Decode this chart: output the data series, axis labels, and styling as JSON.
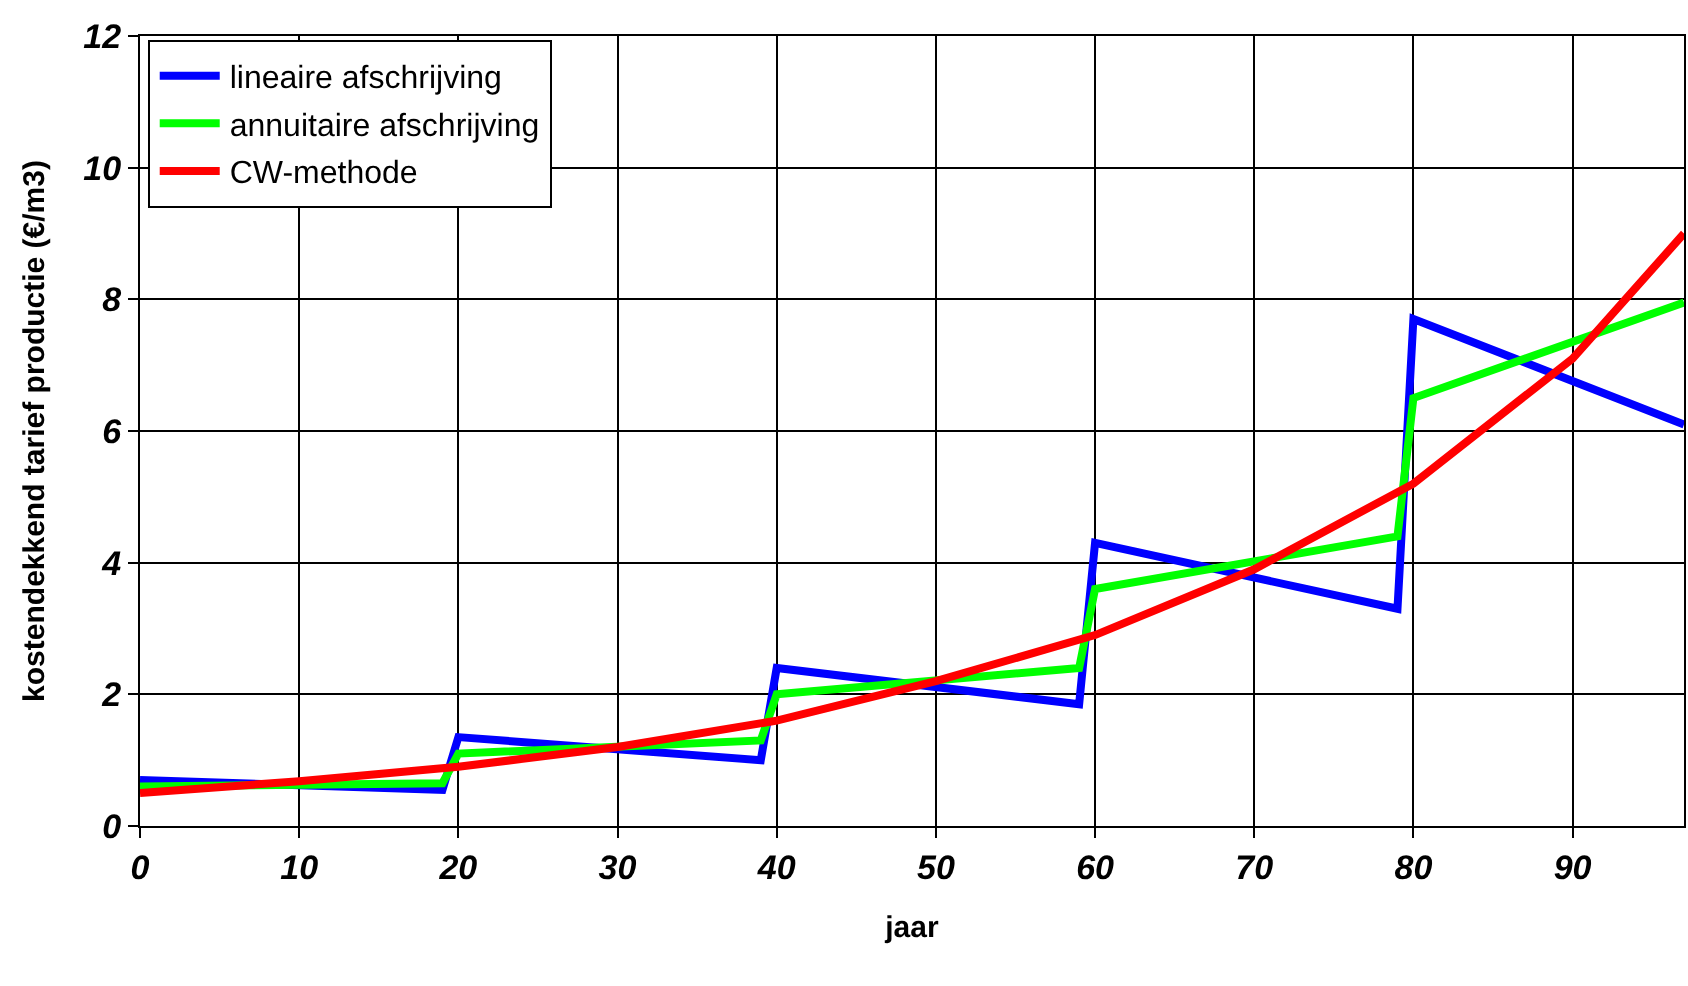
{
  "chart_data": {
    "type": "line",
    "xlabel": "jaar",
    "ylabel": "kostendekkend tarief productie (€/m3)",
    "xlim": [
      0,
      97
    ],
    "xticks": [
      0,
      10,
      20,
      30,
      40,
      50,
      60,
      70,
      80,
      90
    ],
    "ylim": [
      0,
      12
    ],
    "yticks": [
      0,
      2,
      4,
      6,
      8,
      10,
      12
    ],
    "grid": true,
    "legend": "top left",
    "marker": "none",
    "line_style": "solid",
    "series": [
      {
        "name": "lineaire afschrijving",
        "color": "#0000ff",
        "x": [
          0,
          19,
          20,
          39,
          40,
          59,
          60,
          79,
          80,
          97
        ],
        "values": [
          0.7,
          0.55,
          1.35,
          1.0,
          2.4,
          1.85,
          4.3,
          3.3,
          7.7,
          6.1
        ]
      },
      {
        "name": "annuitaire afschrijving",
        "color": "#00ff00",
        "x": [
          0,
          19,
          20,
          39,
          40,
          59,
          60,
          79,
          80,
          97
        ],
        "values": [
          0.6,
          0.65,
          1.1,
          1.3,
          2.0,
          2.4,
          3.6,
          4.4,
          6.5,
          7.95
        ]
      },
      {
        "name": "CW-methode",
        "color": "#ff0000",
        "x": [
          0,
          10,
          20,
          30,
          40,
          50,
          60,
          70,
          80,
          90,
          97
        ],
        "values": [
          0.5,
          0.68,
          0.9,
          1.2,
          1.6,
          2.2,
          2.9,
          3.9,
          5.2,
          7.1,
          9.0
        ]
      }
    ]
  }
}
